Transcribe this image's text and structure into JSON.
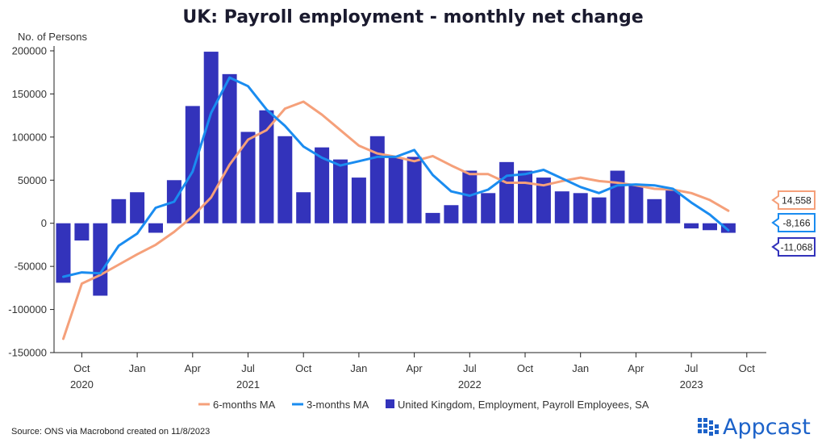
{
  "chart_data": {
    "type": "bar",
    "title": "UK: Payroll employment - monthly net change",
    "ylabel": "No. of Persons",
    "ylim": [
      -150000,
      200000
    ],
    "yticks": [
      200000,
      150000,
      100000,
      50000,
      0,
      -50000,
      -100000,
      -150000
    ],
    "x_tick_labels": [
      {
        "label": "Oct",
        "year": "2020",
        "index": 1
      },
      {
        "label": "Jan",
        "index": 4
      },
      {
        "label": "Apr",
        "index": 7
      },
      {
        "label": "Jul",
        "year": "2021",
        "index": 10
      },
      {
        "label": "Oct",
        "index": 13
      },
      {
        "label": "Jan",
        "index": 16
      },
      {
        "label": "Apr",
        "index": 19
      },
      {
        "label": "Jul",
        "year": "2022",
        "index": 22
      },
      {
        "label": "Oct",
        "index": 25
      },
      {
        "label": "Jan",
        "index": 28
      },
      {
        "label": "Apr",
        "index": 31
      },
      {
        "label": "Jul",
        "year": "2023",
        "index": 34
      },
      {
        "label": "Oct",
        "index": 37
      }
    ],
    "series": [
      {
        "name": "United Kingdom, Employment, Payroll Employees, SA",
        "kind": "bar",
        "color": "#3333bb",
        "values": [
          -69000,
          -20000,
          -84000,
          28000,
          36000,
          -11000,
          50000,
          136000,
          199000,
          173000,
          106000,
          131000,
          101000,
          36000,
          88000,
          74000,
          53000,
          101000,
          76000,
          77000,
          12000,
          21000,
          61000,
          35000,
          71000,
          61000,
          53000,
          37000,
          35000,
          30000,
          61000,
          45000,
          28000,
          39000,
          -6000,
          -8000,
          -11068
        ]
      },
      {
        "name": "6-months MA",
        "kind": "line",
        "color": "#f5a07a",
        "values": [
          -134000,
          -70000,
          -60000,
          -48000,
          -36000,
          -25000,
          -10000,
          8000,
          30000,
          68000,
          97000,
          108000,
          133000,
          141000,
          126000,
          108000,
          90000,
          81000,
          77000,
          72000,
          78000,
          67000,
          57000,
          57000,
          47000,
          47000,
          44000,
          49000,
          53000,
          49000,
          47000,
          44000,
          40000,
          39000,
          35000,
          27000,
          14558
        ]
      },
      {
        "name": "3-months MA",
        "kind": "line",
        "color": "#1a8cf0",
        "values": [
          -62000,
          -57000,
          -58000,
          -26000,
          -12000,
          18000,
          25000,
          60000,
          128000,
          169000,
          159000,
          132000,
          113000,
          89000,
          76000,
          67000,
          72000,
          77000,
          77000,
          85000,
          56000,
          37000,
          32000,
          39000,
          55000,
          57000,
          62000,
          52000,
          42000,
          35000,
          44000,
          45000,
          44000,
          40000,
          24000,
          10000,
          -8166
        ]
      }
    ],
    "last_value_labels": [
      "14,558",
      "-8,166",
      "-11,068"
    ],
    "source": "Source: ONS via Macrobond created on 11/8/2023"
  },
  "brand": {
    "name": "Appcast",
    "color": "#1c62c9"
  }
}
